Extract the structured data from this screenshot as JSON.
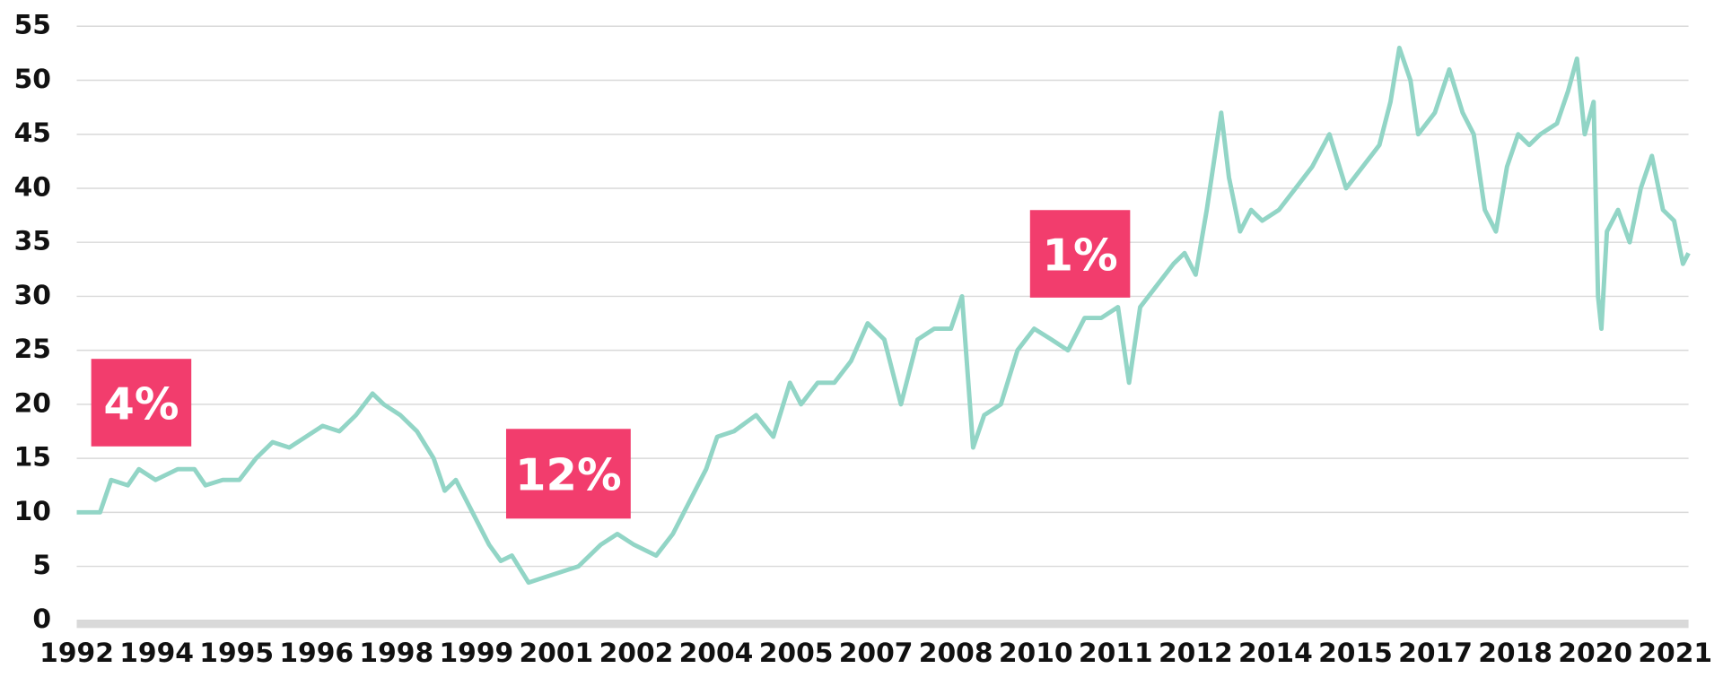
{
  "chart_data": {
    "type": "line",
    "x": [
      1992.0,
      1992.42,
      1992.62,
      1992.92,
      1993.12,
      1993.42,
      1993.82,
      1994.12,
      1994.32,
      1994.63,
      1994.93,
      1995.23,
      1995.53,
      1995.83,
      1996.13,
      1996.43,
      1996.73,
      1997.03,
      1997.33,
      1997.53,
      1997.83,
      1998.13,
      1998.43,
      1998.63,
      1998.83,
      1999.13,
      1999.43,
      1999.64,
      1999.84,
      2000.14,
      2000.44,
      2000.74,
      2001.04,
      2001.44,
      2001.74,
      2002.04,
      2002.44,
      2002.74,
      2003.04,
      2003.34,
      2003.54,
      2003.84,
      2004.24,
      2004.55,
      2004.85,
      2005.05,
      2005.35,
      2005.65,
      2005.95,
      2006.25,
      2006.55,
      2006.85,
      2007.15,
      2007.45,
      2007.75,
      2007.95,
      2008.15,
      2008.35,
      2008.65,
      2008.95,
      2009.25,
      2009.56,
      2009.86,
      2010.16,
      2010.46,
      2010.76,
      2010.96,
      2011.16,
      2011.46,
      2011.76,
      2011.96,
      2012.16,
      2012.36,
      2012.62,
      2012.76,
      2012.96,
      2013.16,
      2013.36,
      2013.66,
      2013.96,
      2014.26,
      2014.57,
      2014.87,
      2015.17,
      2015.47,
      2015.67,
      2015.83,
      2016.03,
      2016.17,
      2016.47,
      2016.73,
      2016.97,
      2017.17,
      2017.37,
      2017.57,
      2017.77,
      2017.97,
      2018.17,
      2018.37,
      2018.67,
      2018.87,
      2019.03,
      2019.17,
      2019.33,
      2019.41,
      2019.47,
      2019.57,
      2019.77,
      2019.98,
      2020.18,
      2020.38,
      2020.58,
      2020.78,
      2020.94,
      2021.04
    ],
    "series": [
      {
        "color": "#92d5c6",
        "values": [
          10,
          10,
          13,
          12.5,
          14,
          13,
          14,
          14,
          12.5,
          13,
          13,
          15,
          16.5,
          16,
          17,
          18,
          17.5,
          19,
          21,
          20,
          19,
          17.5,
          15,
          12,
          13,
          10,
          7,
          5.5,
          6,
          3.5,
          4,
          4.5,
          5,
          7,
          8,
          7,
          6,
          8,
          11,
          14,
          17,
          17.5,
          19,
          17,
          22,
          20,
          22,
          22,
          24,
          27.5,
          26,
          20,
          26,
          27,
          27,
          30,
          16,
          19,
          20,
          25,
          27,
          26,
          25,
          28,
          28,
          29,
          22,
          29,
          31,
          33,
          34,
          32,
          38,
          47,
          41,
          36,
          38,
          37,
          38,
          40,
          42,
          45,
          40,
          42,
          44,
          48,
          53,
          50,
          45,
          47,
          51,
          47,
          45,
          38,
          36,
          42,
          45,
          44,
          45,
          46,
          49,
          52,
          45,
          48,
          30,
          27,
          36,
          38,
          35,
          40,
          43,
          38,
          37,
          33,
          34
        ]
      }
    ],
    "xlim": [
      1992,
      2021.04
    ],
    "xticks": [
      {
        "value": 1992,
        "label": "1992"
      },
      {
        "value": 1993.44,
        "label": "1994"
      },
      {
        "value": 1994.88,
        "label": "1995"
      },
      {
        "value": 1996.32,
        "label": "1996"
      },
      {
        "value": 1997.76,
        "label": "1998"
      },
      {
        "value": 1999.2,
        "label": "1999"
      },
      {
        "value": 2000.64,
        "label": "2001"
      },
      {
        "value": 2002.08,
        "label": "2002"
      },
      {
        "value": 2003.52,
        "label": "2004"
      },
      {
        "value": 2004.96,
        "label": "2005"
      },
      {
        "value": 2006.4,
        "label": "2007"
      },
      {
        "value": 2007.84,
        "label": "2008"
      },
      {
        "value": 2009.28,
        "label": "2010"
      },
      {
        "value": 2010.72,
        "label": "2011"
      },
      {
        "value": 2012.16,
        "label": "2012"
      },
      {
        "value": 2013.6,
        "label": "2014"
      },
      {
        "value": 2015.04,
        "label": "2015"
      },
      {
        "value": 2016.48,
        "label": "2017"
      },
      {
        "value": 2017.92,
        "label": "2018"
      },
      {
        "value": 2019.36,
        "label": "2020"
      },
      {
        "value": 2020.8,
        "label": "2021"
      }
    ],
    "ylim": [
      0,
      55
    ],
    "yticks": [
      0,
      5,
      10,
      15,
      20,
      25,
      30,
      35,
      40,
      45,
      50,
      55
    ],
    "grid": true,
    "annotations": [
      "4%",
      "12%",
      "1%"
    ],
    "annotation_color": "#f23d6d"
  }
}
